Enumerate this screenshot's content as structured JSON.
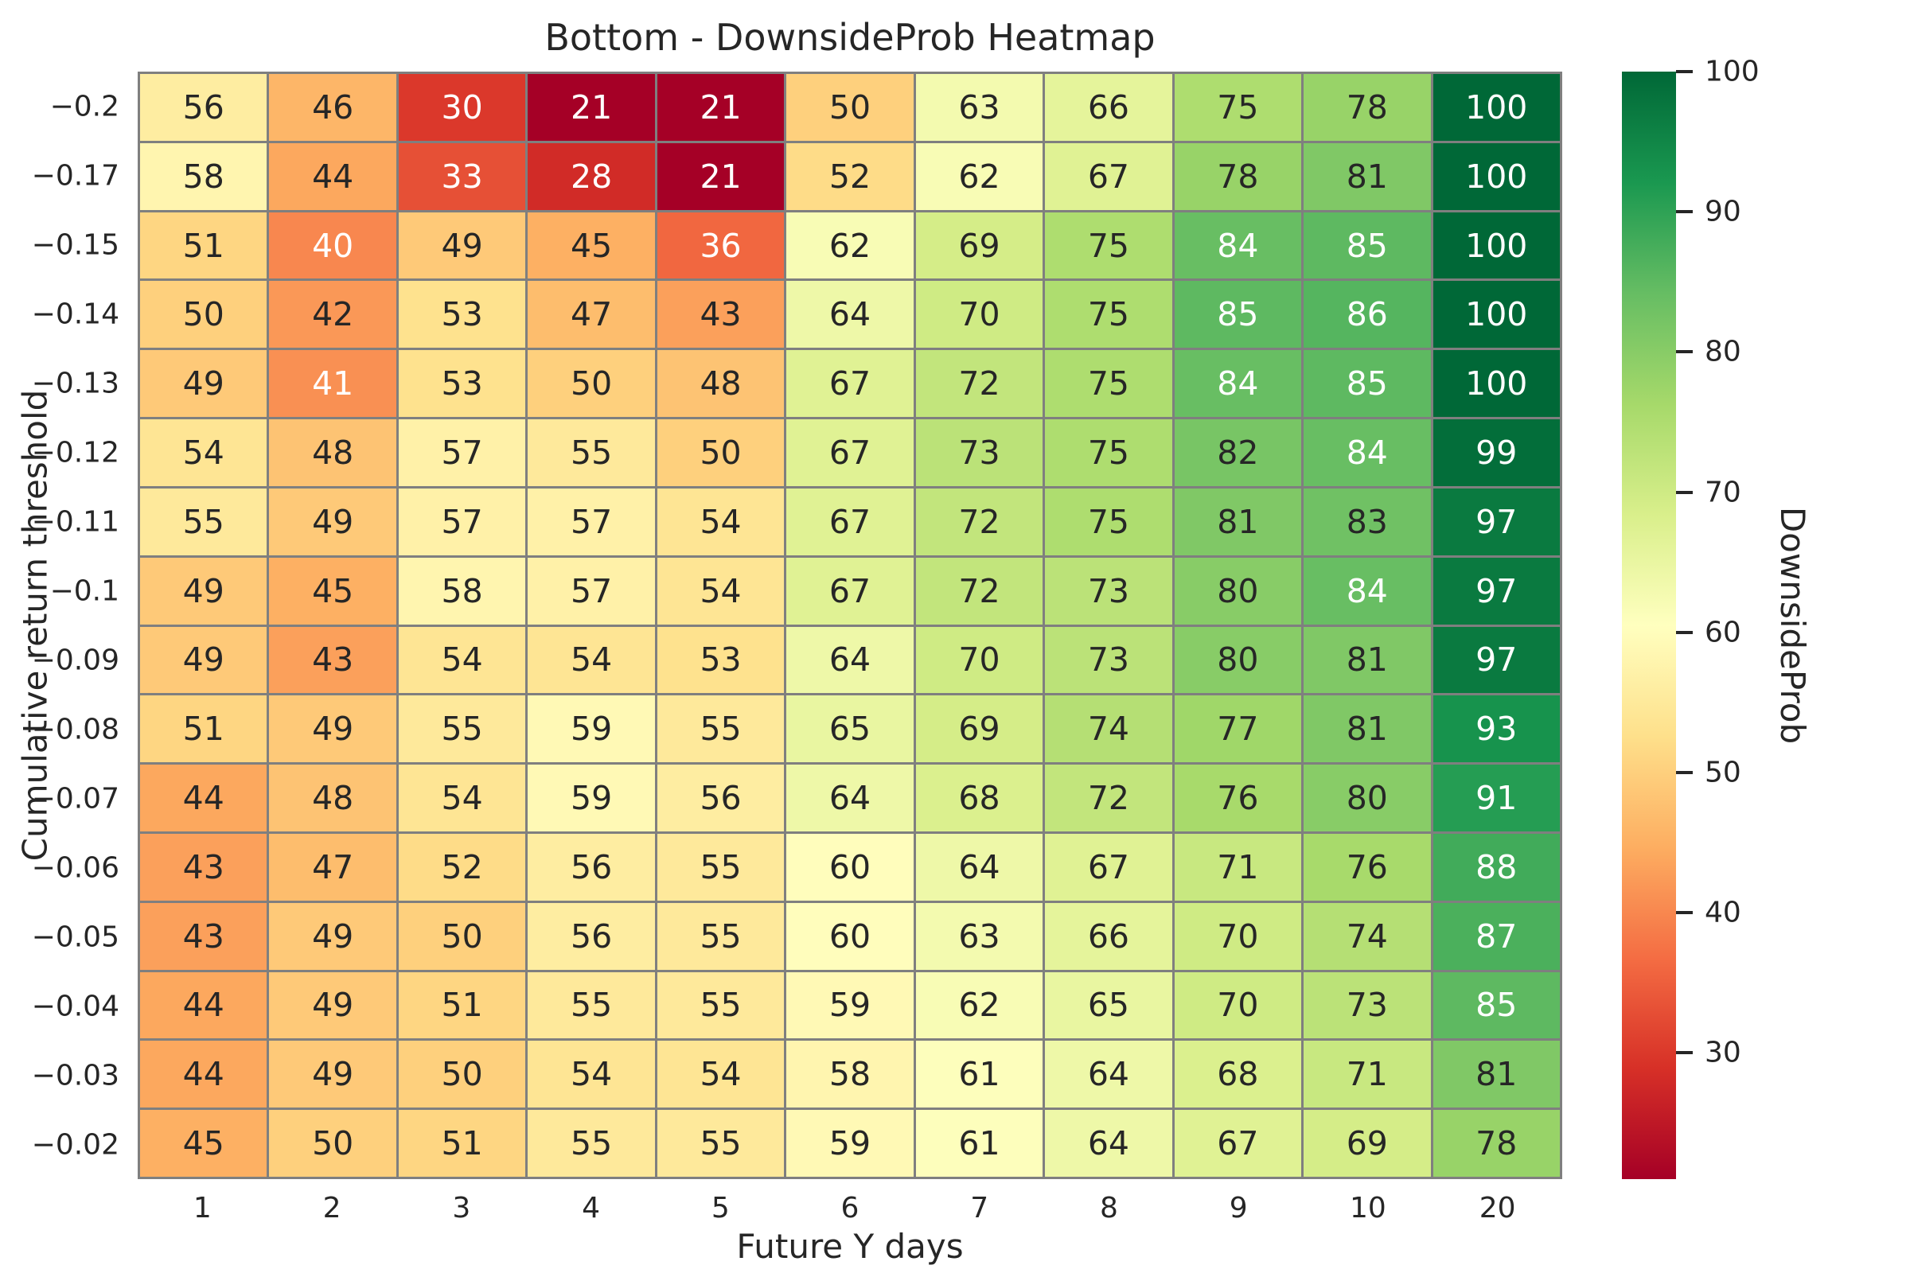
{
  "title": "Bottom - DownsideProb Heatmap",
  "colors": {
    "background": "#ffffff",
    "text": "#262626",
    "grid_line": "#7f7f7f",
    "annotation_light": "#ffffff"
  },
  "chart_data": {
    "type": "heatmap",
    "title": "Bottom - DownsideProb Heatmap",
    "xlabel": "Future Y days",
    "ylabel": "Cumulative return threshold",
    "x_ticks": [
      "1",
      "2",
      "3",
      "4",
      "5",
      "6",
      "7",
      "8",
      "9",
      "10",
      "20"
    ],
    "y_ticks": [
      "−0.2",
      "−0.17",
      "−0.15",
      "−0.14",
      "−0.13",
      "−0.12",
      "−0.11",
      "−0.1",
      "−0.09",
      "−0.08",
      "−0.07",
      "−0.06",
      "−0.05",
      "−0.04",
      "−0.03",
      "−0.02"
    ],
    "values": [
      [
        56,
        46,
        30,
        21,
        21,
        50,
        63,
        66,
        75,
        78,
        100
      ],
      [
        58,
        44,
        33,
        28,
        21,
        52,
        62,
        67,
        78,
        81,
        100
      ],
      [
        51,
        40,
        49,
        45,
        36,
        62,
        69,
        75,
        84,
        85,
        100
      ],
      [
        50,
        42,
        53,
        47,
        43,
        64,
        70,
        75,
        85,
        86,
        100
      ],
      [
        49,
        41,
        53,
        50,
        48,
        67,
        72,
        75,
        84,
        85,
        100
      ],
      [
        54,
        48,
        57,
        55,
        50,
        67,
        73,
        75,
        82,
        84,
        99
      ],
      [
        55,
        49,
        57,
        57,
        54,
        67,
        72,
        75,
        81,
        83,
        97
      ],
      [
        49,
        45,
        58,
        57,
        54,
        67,
        72,
        73,
        80,
        84,
        97
      ],
      [
        49,
        43,
        54,
        54,
        53,
        64,
        70,
        73,
        80,
        81,
        97
      ],
      [
        51,
        49,
        55,
        59,
        55,
        65,
        69,
        74,
        77,
        81,
        93
      ],
      [
        44,
        48,
        54,
        59,
        56,
        64,
        68,
        72,
        76,
        80,
        91
      ],
      [
        43,
        47,
        52,
        56,
        55,
        60,
        64,
        67,
        71,
        76,
        88
      ],
      [
        43,
        49,
        50,
        56,
        55,
        60,
        63,
        66,
        70,
        74,
        87
      ],
      [
        44,
        49,
        51,
        55,
        55,
        59,
        62,
        65,
        70,
        73,
        85
      ],
      [
        44,
        49,
        50,
        54,
        54,
        58,
        61,
        64,
        68,
        71,
        81
      ],
      [
        45,
        50,
        51,
        55,
        55,
        59,
        61,
        64,
        67,
        69,
        78
      ]
    ],
    "vmin": 21,
    "vmax": 100,
    "colormap": "RdYlGn",
    "colormap_anchors": [
      "#a50026",
      "#d73027",
      "#f46d43",
      "#fdae61",
      "#fee08b",
      "#ffffbf",
      "#d9ef8b",
      "#a6d96a",
      "#66bd63",
      "#1a9850",
      "#006837"
    ],
    "grid_on": true,
    "legend_position": "right-colorbar",
    "colorbar": {
      "label": "DownsideProb",
      "ticks": [
        30,
        40,
        50,
        60,
        70,
        80,
        90,
        100
      ]
    }
  }
}
